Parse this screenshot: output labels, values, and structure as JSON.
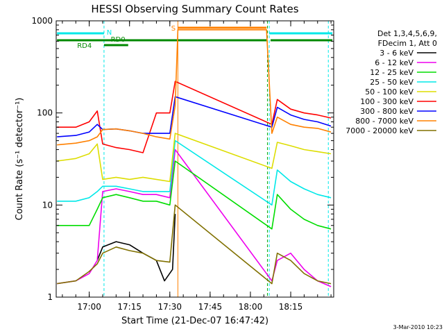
{
  "chart_data": {
    "type": "line",
    "title": "HESSI Observing Summary Count Rates",
    "xlabel": "Start Time (21-Dec-07 16:47:42)",
    "ylabel": "Count Rate (s⁻¹ detector⁻¹)",
    "ylim": [
      1,
      1000
    ],
    "y_scale": "log",
    "xlim": [
      "16:47:42",
      "18:31:00"
    ],
    "x_tick_labels": [
      "17:00",
      "17:15",
      "17:30",
      "17:45",
      "18:00",
      "18:15"
    ],
    "y_tick_labels": [
      "1",
      "10",
      "100",
      "1000"
    ],
    "y_tick_values": [
      1,
      10,
      100,
      1000
    ],
    "legend_header": [
      "Det 1,3,4,5,6,9,",
      "FDecim 1, Att 0"
    ],
    "legend_position": "right",
    "footer_date": "3-Mar-2010 10:23",
    "flags": {
      "N_label": "N",
      "RD0_label": "RD0",
      "RD4_label": "RD4",
      "S_label": "S"
    },
    "series": [
      {
        "name": "3 - 6 keV",
        "color": "#000000",
        "x": [
          "17:03",
          "17:05",
          "17:10",
          "17:15",
          "17:20",
          "17:25",
          "17:28",
          "17:31",
          "17:32"
        ],
        "values": [
          2.5,
          3.5,
          4.0,
          3.7,
          3.0,
          2.5,
          1.5,
          2.0,
          8.0
        ]
      },
      {
        "name": "6 - 12 keV",
        "color": "#ee00ee",
        "x": [
          "16:48",
          "16:55",
          "17:00",
          "17:03",
          "17:05",
          "17:10",
          "17:15",
          "17:20",
          "17:25",
          "17:30",
          "17:32",
          "18:08",
          "18:10",
          "18:15",
          "18:20",
          "18:25",
          "18:30"
        ],
        "values": [
          1.4,
          1.5,
          1.8,
          2.5,
          14,
          15,
          14,
          13,
          13,
          12,
          40,
          1.5,
          2.5,
          3.0,
          2.0,
          1.5,
          1.3
        ]
      },
      {
        "name": "12 - 25 keV",
        "color": "#00dd00",
        "x": [
          "16:48",
          "16:55",
          "17:00",
          "17:03",
          "17:05",
          "17:10",
          "17:15",
          "17:20",
          "17:25",
          "17:30",
          "17:32",
          "18:08",
          "18:10",
          "18:15",
          "18:20",
          "18:25",
          "18:30"
        ],
        "values": [
          6.0,
          6.0,
          6.0,
          9.0,
          12,
          13,
          12,
          11,
          11,
          10,
          30,
          5.5,
          13,
          9.0,
          7.0,
          6.0,
          5.5
        ]
      },
      {
        "name": "25 - 50 keV",
        "color": "#00e8e8",
        "x": [
          "16:48",
          "16:55",
          "17:00",
          "17:03",
          "17:05",
          "17:10",
          "17:15",
          "17:20",
          "17:25",
          "17:30",
          "17:32",
          "18:08",
          "18:10",
          "18:15",
          "18:20",
          "18:25",
          "18:30"
        ],
        "values": [
          11,
          11,
          12,
          14,
          16,
          16,
          15,
          14,
          14,
          14,
          50,
          10,
          24,
          18,
          15,
          13,
          12
        ]
      },
      {
        "name": "50 - 100 keV",
        "color": "#dddd00",
        "x": [
          "16:48",
          "16:55",
          "17:00",
          "17:03",
          "17:05",
          "17:10",
          "17:15",
          "17:20",
          "17:25",
          "17:30",
          "17:32",
          "18:08",
          "18:10",
          "18:15",
          "18:20",
          "18:25",
          "18:30"
        ],
        "values": [
          30,
          32,
          36,
          46,
          19,
          20,
          19,
          20,
          19,
          18,
          60,
          25,
          48,
          44,
          40,
          38,
          36
        ]
      },
      {
        "name": "100 - 300 keV",
        "color": "#ff0000",
        "x": [
          "16:48",
          "16:55",
          "17:00",
          "17:03",
          "17:05",
          "17:10",
          "17:15",
          "17:20",
          "17:25",
          "17:30",
          "17:32",
          "18:08",
          "18:10",
          "18:15",
          "18:20",
          "18:25",
          "18:30"
        ],
        "values": [
          70,
          70,
          80,
          105,
          46,
          42,
          40,
          37,
          100,
          100,
          220,
          75,
          140,
          110,
          100,
          95,
          88
        ]
      },
      {
        "name": "300 - 800 keV",
        "color": "#0000ff",
        "x": [
          "16:48",
          "16:55",
          "17:00",
          "17:03",
          "17:05",
          "17:10",
          "17:15",
          "17:20",
          "17:25",
          "17:30",
          "17:32",
          "18:08",
          "18:10",
          "18:15",
          "18:20",
          "18:25",
          "18:30"
        ],
        "values": [
          55,
          57,
          62,
          75,
          66,
          67,
          64,
          60,
          60,
          60,
          150,
          70,
          115,
          95,
          85,
          80,
          72
        ]
      },
      {
        "name": "800 - 7000 keV",
        "color": "#ff8000",
        "x": [
          "16:48",
          "16:55",
          "17:00",
          "17:03",
          "17:05",
          "17:10",
          "17:15",
          "17:20",
          "17:25",
          "17:30",
          "17:32",
          "17:33",
          "18:06",
          "18:08",
          "18:10",
          "18:15",
          "18:20",
          "18:25",
          "18:30"
        ],
        "values": [
          45,
          47,
          50,
          55,
          66,
          67,
          64,
          60,
          55,
          52,
          120,
          800,
          800,
          60,
          90,
          75,
          70,
          68,
          62
        ]
      },
      {
        "name": "7000 - 20000 keV",
        "color": "#807000",
        "x": [
          "16:48",
          "16:55",
          "17:00",
          "17:03",
          "17:05",
          "17:10",
          "17:15",
          "17:20",
          "17:25",
          "17:30",
          "17:32",
          "18:08",
          "18:10",
          "18:15",
          "18:20",
          "18:25",
          "18:30"
        ],
        "values": [
          1.4,
          1.5,
          1.9,
          2.3,
          3.0,
          3.5,
          3.2,
          3.0,
          2.5,
          2.4,
          10,
          1.4,
          3.0,
          2.5,
          1.8,
          1.5,
          1.4
        ]
      }
    ]
  }
}
